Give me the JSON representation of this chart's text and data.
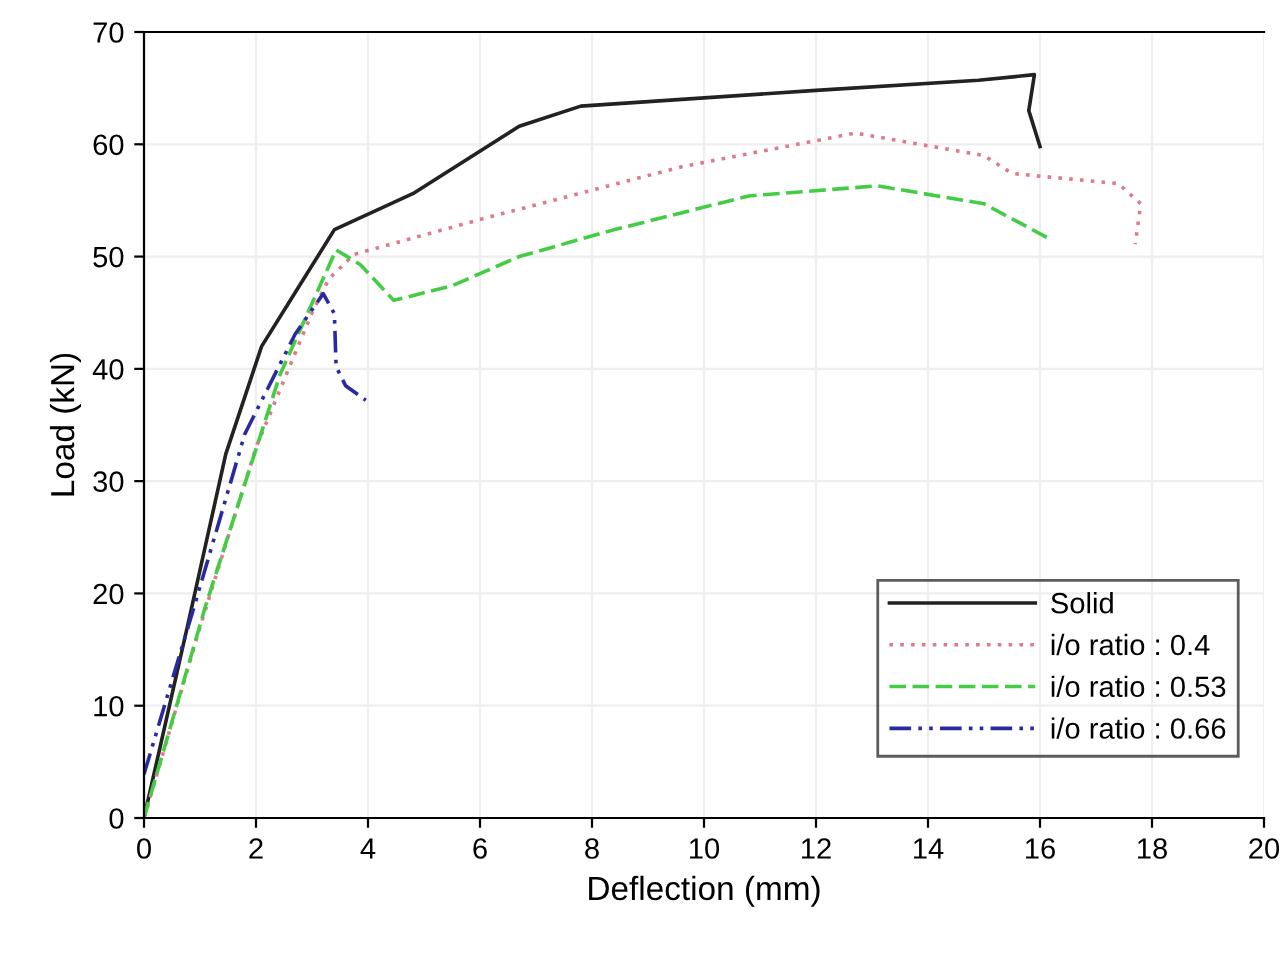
{
  "chart_data": {
    "type": "line",
    "xlabel": "Deflection (mm)",
    "ylabel": "Load (kN)",
    "xlim": [
      0,
      20
    ],
    "ylim": [
      0,
      70
    ],
    "xticks": [
      0,
      2,
      4,
      6,
      8,
      10,
      12,
      14,
      16,
      18,
      20
    ],
    "yticks": [
      0,
      10,
      20,
      30,
      40,
      50,
      60,
      70
    ],
    "grid": true,
    "legend": "bottom right",
    "marker": "none",
    "series": [
      {
        "name": "Solid",
        "color": "#222222",
        "line_style": "solid",
        "x": [
          0,
          0.8,
          1.46,
          2.1,
          2.6,
          3.4,
          4.8,
          6.7,
          7.8,
          12,
          14.9,
          15.9,
          15.8,
          16
        ],
        "values": [
          0,
          17.6,
          32.4,
          42,
          46,
          52.4,
          55.6,
          61.6,
          63.4,
          64.8,
          65.7,
          66.2,
          63,
          59.8
        ]
      },
      {
        "name": "i/o ratio : 0.4",
        "color": "#e07a8a",
        "line_style": "dotted",
        "x": [
          0,
          1,
          2,
          3,
          3.3,
          3.75,
          6,
          9.6,
          12.7,
          15,
          15.5,
          17.4,
          17.8,
          17.7
        ],
        "values": [
          0,
          17,
          33,
          45,
          48,
          50.2,
          53.3,
          58,
          61,
          59,
          57.4,
          56.5,
          54.7,
          51.1
        ]
      },
      {
        "name": "i/o ratio : 0.53",
        "color": "#44cc44",
        "line_style": "dashed",
        "x": [
          0,
          1.1,
          2.43,
          3.43,
          3.86,
          4.46,
          5.5,
          6.7,
          8.4,
          10.8,
          13.1,
          15,
          16.2
        ],
        "values": [
          0,
          18.9,
          39.5,
          50.6,
          49.3,
          46.1,
          47.4,
          50,
          52.4,
          55.4,
          56.3,
          54.7,
          51.5
        ]
      },
      {
        "name": "i/o ratio : 0.66",
        "color": "#2a2aa0",
        "line_style": "dashdot",
        "x": [
          0,
          0.9,
          1.8,
          2.7,
          3.2,
          3.4,
          3.43,
          3.6,
          3.96
        ],
        "values": [
          3.9,
          18.9,
          34.2,
          43.1,
          46.7,
          44.9,
          40.2,
          38.5,
          37.2
        ]
      }
    ]
  }
}
